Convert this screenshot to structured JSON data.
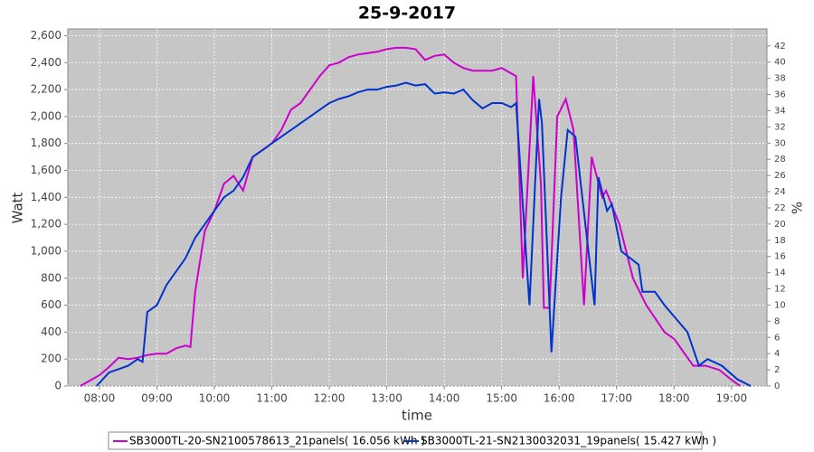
{
  "chart_data": {
    "type": "line",
    "title": "25-9-2017",
    "x_label": "time",
    "y_label": "Watt",
    "y2_label": "%",
    "xlim": [
      "07:27",
      "19:37"
    ],
    "xticks": [
      "08:00",
      "09:00",
      "10:00",
      "11:00",
      "12:00",
      "13:00",
      "14:00",
      "15:00",
      "16:00",
      "17:00",
      "18:00",
      "19:00"
    ],
    "ylim": [
      0,
      2650
    ],
    "yticks": [
      0,
      200,
      400,
      600,
      800,
      {
        "value": 1000,
        "label": "1,000"
      },
      {
        "value": 1200,
        "label": "1,200"
      },
      {
        "value": 1400,
        "label": "1,400"
      },
      {
        "value": 1600,
        "label": "1,600"
      },
      {
        "value": 1800,
        "label": "1,800"
      },
      {
        "value": 2000,
        "label": "2,000"
      },
      {
        "value": 2200,
        "label": "2,200"
      },
      {
        "value": 2400,
        "label": "2,400"
      },
      {
        "value": 2600,
        "label": "2,600"
      }
    ],
    "y2lim": [
      0,
      44.1
    ],
    "y2ticks": [
      0,
      2,
      4,
      6,
      8,
      10,
      12,
      14,
      16,
      18,
      20,
      22,
      24,
      26,
      28,
      30,
      32,
      34,
      36,
      38,
      40,
      42
    ],
    "grid": true,
    "legend": "bottom",
    "series": [
      {
        "name": "SB3000TL-20-SN2100578613_21panels( 16.056 kWh )",
        "color": "#cc00cc",
        "x": [
          "07:40",
          "07:50",
          "08:00",
          "08:10",
          "08:20",
          "08:30",
          "08:40",
          "08:50",
          "09:00",
          "09:10",
          "09:20",
          "09:30",
          "09:35",
          "09:40",
          "09:50",
          "10:00",
          "10:10",
          "10:20",
          "10:30",
          "10:40",
          "10:50",
          "11:00",
          "11:10",
          "11:20",
          "11:30",
          "11:40",
          "11:50",
          "12:00",
          "12:10",
          "12:20",
          "12:30",
          "12:40",
          "12:50",
          "13:00",
          "13:10",
          "13:20",
          "13:30",
          "13:40",
          "13:50",
          "14:00",
          "14:10",
          "14:20",
          "14:30",
          "14:40",
          "14:50",
          "15:00",
          "15:15",
          "15:22",
          "15:33",
          "15:41",
          "15:44",
          "15:50",
          "15:58",
          "16:07",
          "16:15",
          "16:26",
          "16:34",
          "16:45",
          "16:49",
          "17:03",
          "17:17",
          "17:31",
          "17:50",
          "18:00",
          "18:20",
          "18:33",
          "18:47",
          "19:01",
          "19:09"
        ],
        "values": [
          0,
          40,
          80,
          140,
          210,
          200,
          210,
          230,
          240,
          240,
          280,
          300,
          290,
          700,
          1150,
          1300,
          1500,
          1560,
          1450,
          1700,
          1750,
          1800,
          1900,
          2050,
          2100,
          2200,
          2300,
          2380,
          2400,
          2440,
          2460,
          2470,
          2480,
          2500,
          2510,
          2510,
          2500,
          2420,
          2450,
          2460,
          2400,
          2360,
          2340,
          2340,
          2340,
          2360,
          2300,
          800,
          2300,
          1500,
          580,
          580,
          2000,
          2130,
          1900,
          600,
          1700,
          1400,
          1450,
          1200,
          800,
          600,
          400,
          350,
          150,
          150,
          120,
          40,
          0
        ]
      },
      {
        "name": "SB3000TL-21-SN2130032031_19panels( 15.427 kWh )",
        "color": "#0033cc",
        "x": [
          "07:57",
          "08:10",
          "08:30",
          "08:40",
          "08:45",
          "08:50",
          "09:00",
          "09:10",
          "09:20",
          "09:30",
          "09:40",
          "09:50",
          "10:00",
          "10:10",
          "10:20",
          "10:30",
          "10:40",
          "10:50",
          "11:00",
          "11:10",
          "11:20",
          "11:30",
          "11:40",
          "11:50",
          "12:00",
          "12:10",
          "12:20",
          "12:30",
          "12:40",
          "12:50",
          "13:00",
          "13:10",
          "13:20",
          "13:30",
          "13:40",
          "13:50",
          "14:00",
          "14:10",
          "14:20",
          "14:30",
          "14:40",
          "14:50",
          "15:00",
          "15:10",
          "15:15",
          "15:29",
          "15:39",
          "15:42",
          "15:52",
          "16:02",
          "16:09",
          "16:17",
          "16:37",
          "16:41",
          "16:50",
          "16:55",
          "17:05",
          "17:23",
          "17:27",
          "17:40",
          "17:50",
          "18:14",
          "18:26",
          "18:35",
          "18:50",
          "19:06",
          "19:20"
        ],
        "values": [
          0,
          100,
          150,
          200,
          180,
          550,
          600,
          750,
          850,
          950,
          1100,
          1200,
          1300,
          1400,
          1450,
          1550,
          1700,
          1750,
          1800,
          1850,
          1900,
          1950,
          2000,
          2050,
          2100,
          2130,
          2150,
          2180,
          2200,
          2200,
          2220,
          2230,
          2250,
          2230,
          2240,
          2170,
          2180,
          2170,
          2200,
          2120,
          2060,
          2100,
          2100,
          2070,
          2100,
          600,
          2130,
          1950,
          250,
          1400,
          1900,
          1850,
          600,
          1550,
          1300,
          1350,
          1000,
          900,
          700,
          700,
          600,
          400,
          150,
          200,
          150,
          50,
          0
        ]
      }
    ]
  }
}
